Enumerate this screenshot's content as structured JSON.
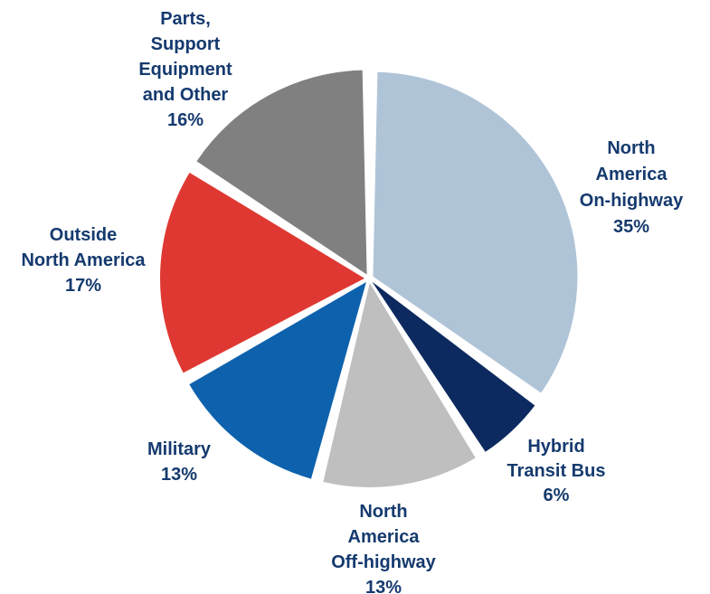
{
  "chart_data": {
    "type": "pie",
    "title": "",
    "unit": "%",
    "slices": [
      {
        "label_lines": [
          "North",
          "America",
          "On-highway"
        ],
        "value": 35,
        "value_text": "35%",
        "color": "#b0c4d8"
      },
      {
        "label_lines": [
          "Hybrid",
          "Transit Bus"
        ],
        "value": 6,
        "value_text": "6%",
        "color": "#0c2a5f"
      },
      {
        "label_lines": [
          "North",
          "America",
          "Off-highway"
        ],
        "value": 13,
        "value_text": "13%",
        "color": "#bfbfbf"
      },
      {
        "label_lines": [
          "Military"
        ],
        "value": 13,
        "value_text": "13%",
        "color": "#0e62ad"
      },
      {
        "label_lines": [
          "Outside",
          "North America"
        ],
        "value": 17,
        "value_text": "17%",
        "color": "#df3832"
      },
      {
        "label_lines": [
          "Parts,",
          "Support",
          "Equipment",
          "and Other"
        ],
        "value": 16,
        "value_text": "16%",
        "color": "#808080"
      }
    ],
    "label_color": "#153a6e"
  }
}
